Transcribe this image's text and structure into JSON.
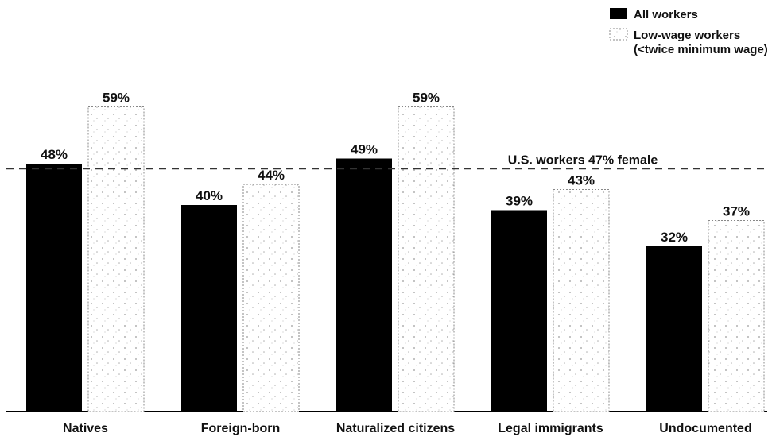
{
  "chart_data": {
    "type": "bar",
    "categories": [
      "Natives",
      "Foreign-born",
      "Naturalized citizens",
      "Legal immigrants",
      "Undocumented"
    ],
    "series": [
      {
        "name": "All workers",
        "values": [
          48,
          40,
          49,
          39,
          32
        ],
        "labels": [
          "48%",
          "40%",
          "49%",
          "39%",
          "32%"
        ],
        "color": "#000000"
      },
      {
        "name": "Low-wage workers",
        "name_line2": "(<twice minimum wage)",
        "values": [
          59,
          44,
          59,
          43,
          37
        ],
        "labels": [
          "59%",
          "44%",
          "59%",
          "43%",
          "37%"
        ],
        "color": "#ffffff",
        "pattern": "dotted"
      }
    ],
    "reference_line": {
      "value": 47,
      "label": "U.S. workers 47% female",
      "style": "dashed"
    },
    "ylim": [
      0,
      62
    ],
    "grid": false,
    "legend_position": "top-right",
    "title": "",
    "xlabel": "",
    "ylabel": ""
  }
}
